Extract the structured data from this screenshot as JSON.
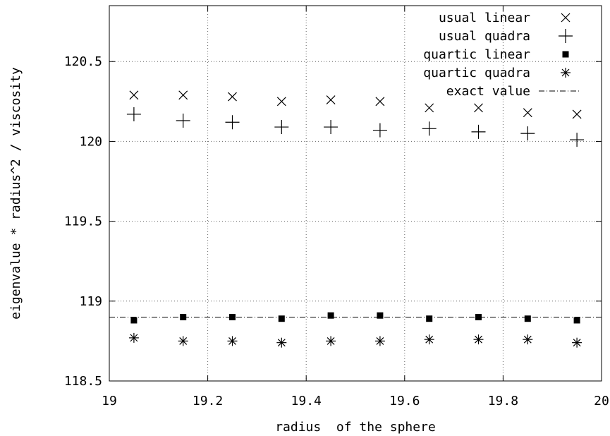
{
  "chart_data": {
    "type": "scatter",
    "xlabel": "radius  of the sphere",
    "ylabel": "eigenvalue * radius^2 / viscosity",
    "xlim": [
      19,
      20
    ],
    "ylim": [
      118.5,
      120.85
    ],
    "xticks": [
      19,
      19.2,
      19.4,
      19.6,
      19.8,
      20
    ],
    "xtick_labels": [
      "19",
      "19.2",
      "19.4",
      "19.6",
      "19.8",
      "20"
    ],
    "yticks": [
      118.5,
      119,
      119.5,
      120,
      120.5
    ],
    "ytick_labels": [
      "118.5",
      "119",
      "119.5",
      "120",
      "120.5"
    ],
    "grid": true,
    "legend_position": "top-right",
    "x": [
      19.05,
      19.15,
      19.25,
      19.35,
      19.45,
      19.55,
      19.65,
      19.75,
      19.85,
      19.95
    ],
    "series": [
      {
        "name": "usual linear",
        "marker": "x",
        "values": [
          120.29,
          120.29,
          120.28,
          120.25,
          120.26,
          120.25,
          120.21,
          120.21,
          120.18,
          120.17
        ]
      },
      {
        "name": "usual quadra",
        "marker": "plus",
        "values": [
          120.17,
          120.13,
          120.12,
          120.09,
          120.09,
          120.07,
          120.08,
          120.06,
          120.05,
          120.01
        ]
      },
      {
        "name": "quartic linear",
        "marker": "square",
        "values": [
          118.88,
          118.9,
          118.9,
          118.89,
          118.91,
          118.91,
          118.89,
          118.9,
          118.89,
          118.88
        ]
      },
      {
        "name": "quartic quadra",
        "marker": "star",
        "values": [
          118.77,
          118.75,
          118.75,
          118.74,
          118.75,
          118.75,
          118.76,
          118.76,
          118.76,
          118.74
        ]
      }
    ],
    "reference_line": {
      "name": "exact value",
      "value": 118.9,
      "x_range": [
        19,
        20
      ]
    }
  }
}
